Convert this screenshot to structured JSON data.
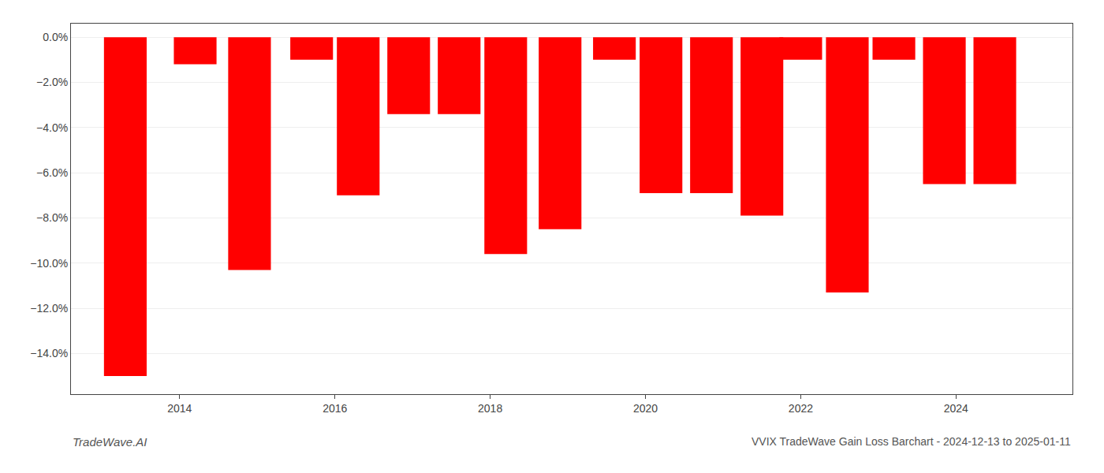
{
  "chart_data": {
    "type": "bar",
    "x": [
      2013.3,
      2014.2,
      2014.9,
      2015.7,
      2016.3,
      2016.95,
      2017.6,
      2018.2,
      2018.9,
      2019.6,
      2020.2,
      2020.85,
      2021.5,
      2022.0,
      2022.6,
      2023.2,
      2023.85,
      2024.5
    ],
    "values": [
      -15.0,
      -1.2,
      -10.3,
      -1.0,
      -7.0,
      -3.4,
      -3.4,
      -9.6,
      -8.5,
      -1.0,
      -6.9,
      -6.9,
      -7.9,
      -1.0,
      -11.3,
      -1.0,
      -6.5,
      -6.5
    ],
    "color": "#ff0000",
    "xlim": [
      2012.6,
      2025.5
    ],
    "xticks": [
      2014,
      2016,
      2018,
      2020,
      2022,
      2024
    ],
    "ylim": [
      -15.8,
      0.6
    ],
    "yticks": [
      {
        "value": 0.0,
        "label": "0.0%"
      },
      {
        "value": -2.0,
        "label": "−2.0%"
      },
      {
        "value": -4.0,
        "label": "−4.0%"
      },
      {
        "value": -6.0,
        "label": "−6.0%"
      },
      {
        "value": -8.0,
        "label": "−8.0%"
      },
      {
        "value": -10.0,
        "label": "−10.0%"
      },
      {
        "value": -12.0,
        "label": "−12.0%"
      },
      {
        "value": -14.0,
        "label": "−14.0%"
      }
    ],
    "grid": true,
    "annotations": [
      "TradeWave.AI",
      "VVIX TradeWave Gain Loss Barchart - 2024-12-13 to 2025-01-11"
    ]
  }
}
